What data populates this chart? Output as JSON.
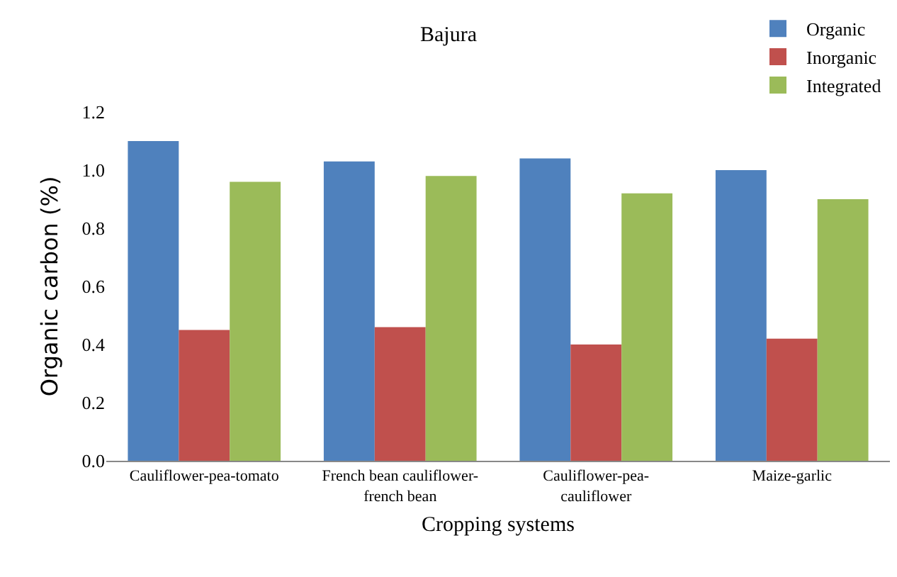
{
  "chart_data": {
    "type": "bar",
    "title": "Bajura",
    "xlabel": "Cropping systems",
    "ylabel": "Organic carbon (%)",
    "categories": [
      "Cauliflower-pea-tomato",
      "French bean cauliflower-french bean",
      "Cauliflower-pea-cauliflower",
      "Maize-garlic"
    ],
    "series": [
      {
        "name": "Organic",
        "color": "#4f81bd",
        "values": [
          1.1,
          1.03,
          1.04,
          1.0
        ]
      },
      {
        "name": "Inorganic",
        "color": "#c0504d",
        "values": [
          0.45,
          0.46,
          0.4,
          0.42
        ]
      },
      {
        "name": "Integrated",
        "color": "#9bbb59",
        "values": [
          0.96,
          0.98,
          0.92,
          0.9
        ]
      }
    ],
    "ylim": [
      0,
      1.2
    ],
    "yticks": [
      {
        "value": 0,
        "label": "0.0"
      },
      0.2,
      0.4,
      0.6,
      0.8,
      {
        "value": 1,
        "label": "1.0"
      },
      1.2
    ],
    "grid": false,
    "legend": "top right"
  }
}
